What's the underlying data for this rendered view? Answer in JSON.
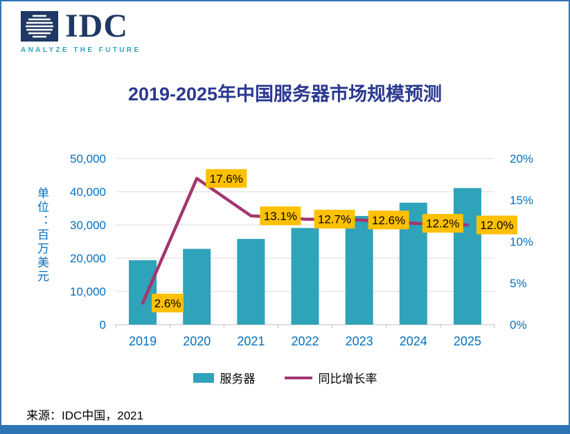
{
  "logo": {
    "text": "IDC",
    "tagline": "ANALYZE THE FUTURE"
  },
  "title": "2019-2025年中国服务器市场规模预测",
  "source": "来源：IDC中国，2021",
  "legend": [
    {
      "label": "服务器",
      "type": "bar"
    },
    {
      "label": "同比增长率",
      "type": "line"
    }
  ],
  "colors": {
    "bar": "#2FA3B9",
    "line": "#A3366F",
    "label_bg": "#FFC000",
    "axis_text": "#0070C0",
    "title": "#2B3990",
    "frame": "#2E75B6",
    "logo_navy": "#1F3864"
  },
  "chart_data": {
    "type": "bar",
    "categories": [
      "2019",
      "2020",
      "2021",
      "2022",
      "2023",
      "2024",
      "2025"
    ],
    "series": [
      {
        "name": "服务器",
        "type": "bar",
        "axis": "left",
        "values": [
          19400,
          22800,
          25800,
          29100,
          32700,
          36700,
          41100
        ]
      },
      {
        "name": "同比增长率",
        "type": "line",
        "axis": "right",
        "values": [
          2.6,
          17.6,
          13.1,
          12.7,
          12.6,
          12.2,
          12.0
        ],
        "labels": [
          "2.6%",
          "17.6%",
          "13.1%",
          "12.7%",
          "12.6%",
          "12.2%",
          "12.0%"
        ]
      }
    ],
    "left_axis": {
      "title": "单位：百万美元",
      "ticks": [
        "0",
        "10,000",
        "20,000",
        "30,000",
        "40,000",
        "50,000"
      ],
      "min": 0,
      "max": 50000
    },
    "right_axis": {
      "ticks": [
        "0%",
        "5%",
        "10%",
        "15%",
        "20%"
      ],
      "min": 0,
      "max": 20
    },
    "grid": true,
    "legend_position": "bottom"
  }
}
